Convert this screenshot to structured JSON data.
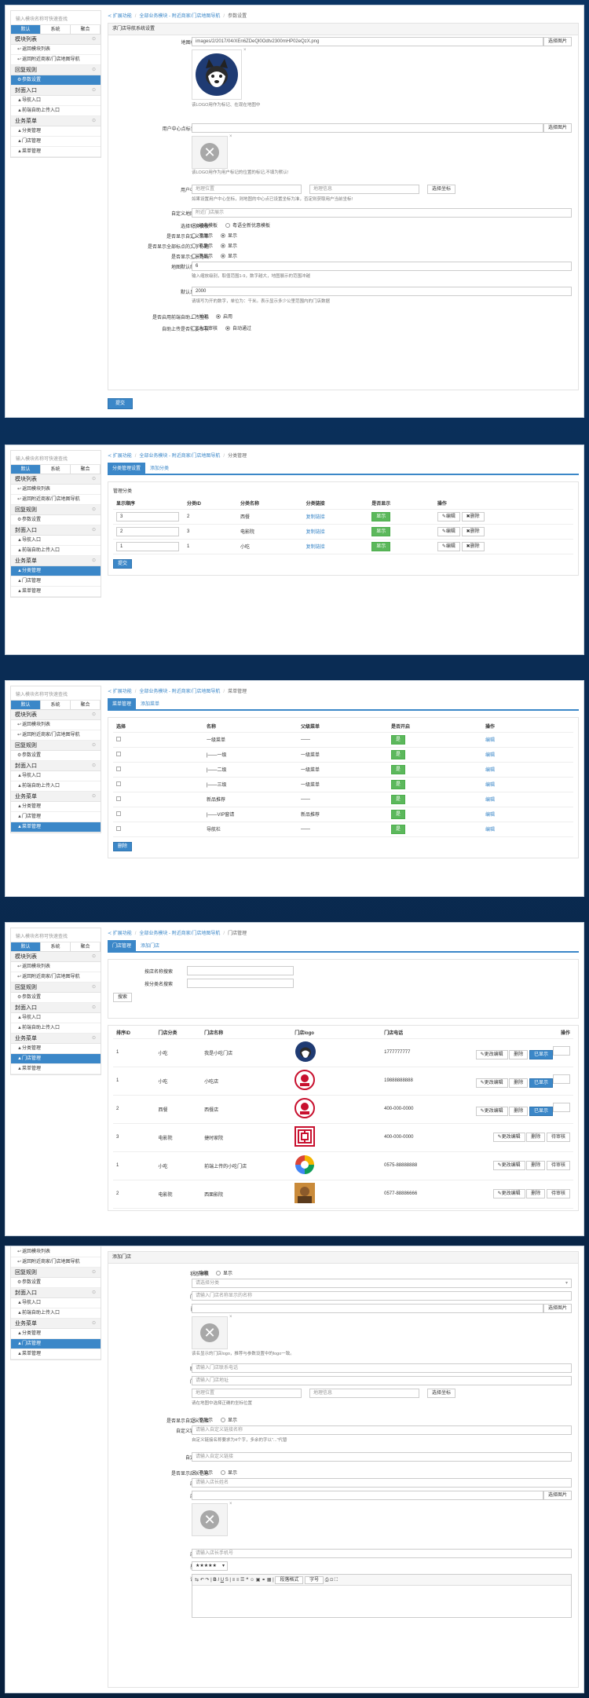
{
  "sidebar": {
    "search_placeholder": "输入模块名称可快速查找",
    "tabs": [
      "默认",
      "系统",
      "聚合"
    ],
    "sec_modules": "模块列表",
    "item_back_list": "返回模块列表",
    "item_back_nav": "返回附近商家/门店地图导航",
    "sec_reply": "回复规则",
    "item_params": "参数设置",
    "sec_entry": "封面入口",
    "item_nav_entry": "导航入口",
    "item_upload_entry": "前端自助上传入口",
    "sec_business": "业务菜单",
    "item_categories": "分类管理",
    "item_stores": "门店管理",
    "item_menus": "菜单管理"
  },
  "breadcrumb": {
    "ext": "扩展功能",
    "all": "全部业务模块 - 附近商家/门店地图导航",
    "params": "参数设置",
    "cat": "分类管理",
    "menu": "菜单管理",
    "store": "门店管理"
  },
  "settings": {
    "box_title": "求门店导航系统设置",
    "logo_label": "地图标识logo",
    "logo_value": "images/2/2017/04/XEn6ZDeQl0Odtv2300mHP02eQzX.png",
    "choose_image": "选择图片",
    "logo_help": "该LOGO用作为标记、在现在地图中",
    "ucenter_logo_label": "用户中心点标记LOGO",
    "ucenter_logo_help": "该LOGO用作为用户标记的位置的标记,不填为默认!",
    "ucenter_coord_label": "用户中心坐标",
    "lng_ph": "地理位置",
    "lat_ph": "地理信息",
    "pick_coord": "选择坐标",
    "ucenter_coord_help": "如果设置用户中心坐标，则地图的中心点已设置坐标为准，否定则获取用户当前坐标!",
    "title_label": "自定义地图页标题",
    "title_value": "附近门店展示",
    "mode_label": "选择切换模板",
    "mode_on": "经典模板",
    "mode_off": "粤语全新优惠模板",
    "show_menu_label": "是否显示自定义菜单",
    "show_name_label": "是否显示全部标点的文字标题",
    "show_all_label": "是否显示全景路线",
    "hide": "不显示",
    "show": "显示",
    "zoom_label": "地图默认缩放级别",
    "zoom_value": "6",
    "zoom_help": "输入缩放级别，取值范围1-9，数字越大，地图展示的范围冲越",
    "distance_label": "默认显示距离",
    "distance_value": "2000",
    "distance_help": "请填写为开的数字，单位为：千米。表示显示多少公里范围内的门店数据",
    "upload_label": "是否启用前端自助上传坐标",
    "upload_off": "关闭",
    "upload_on": "启用",
    "review_label": "自助上传是否需要审核",
    "review_manual": "人工审核",
    "review_auto": "自动通过",
    "submit": "提交"
  },
  "categories": {
    "tab_list": "分类管理设置",
    "tab_add": "添加分类",
    "section": "管理分类",
    "headers": [
      "显示顺序",
      "分类ID",
      "分类名称",
      "分类链接",
      "是否显示",
      "操作"
    ],
    "rows": [
      [
        "3",
        "2",
        "西餐",
        "复制链接"
      ],
      [
        "2",
        "3",
        "电影院",
        "复制链接"
      ],
      [
        "1",
        "1",
        "小吃",
        "复制链接"
      ]
    ],
    "show": "显示",
    "edit": "编辑",
    "del": "删除",
    "submit": "提交"
  },
  "menus": {
    "tab_list": "菜单管理",
    "tab_add": "添加菜单",
    "headers": [
      "选择",
      "名称",
      "父级菜单",
      "是否开启",
      "操作"
    ],
    "rows": [
      [
        "一级菜单",
        "——"
      ],
      [
        "|——一级",
        "一级菜单"
      ],
      [
        "|——二级",
        "一级菜单"
      ],
      [
        "|——三级",
        "一级菜单"
      ],
      [
        "新品推荐",
        "——"
      ],
      [
        "|——VIP窗请",
        "新品推荐"
      ],
      [
        "导航栏",
        "——"
      ]
    ],
    "on": "是",
    "edit": "编辑",
    "del": "删除"
  },
  "stores": {
    "tab_list": "门店管理",
    "tab_add": "添加门店",
    "search_name": "按店名称搜索",
    "search_cat": "按分类名搜索",
    "search_btn": "搜索",
    "headers": [
      "排序ID",
      "门店分类",
      "门店名称",
      "门店logo",
      "门店电话",
      "操作"
    ],
    "rows": [
      [
        "1",
        "小吃",
        "我是小吃门店",
        "1777777777"
      ],
      [
        "1",
        "小吃",
        "小吃店",
        "19888888888"
      ],
      [
        "2",
        "西餐",
        "西餐店",
        "400-000-0000"
      ],
      [
        "3",
        "电影院",
        "捷时家院",
        "400-000-0000"
      ],
      [
        "1",
        "小吃",
        "前端上传的小吃门店",
        "0575-88888888"
      ],
      [
        "2",
        "电影院",
        "西面影院",
        "0577-88886666"
      ]
    ],
    "edit": "更改编辑",
    "del": "删除",
    "shown": "已显示",
    "pending": "待审核"
  },
  "addstore": {
    "title": "添加门店",
    "status_label": "状态审核",
    "hidden": "隐藏",
    "display": "显示",
    "cat_label": "分类",
    "cat_ph": "请选择分类",
    "name_label": "门店名称",
    "name_ph": "请输入门店名称显示的名称",
    "logo_label": "门店logo",
    "logo_help": "该名显示的门店logo，推荐与参数设置中的logo一致。",
    "phone_label": "联系电话",
    "phone_ph": "请输入门店联系电话",
    "addr_label": "门店地址",
    "addr_ph": "请输入门店地址",
    "coord_label": "坐标",
    "coord_help": "请在地图中选择正确的坐标位置",
    "custom_link_label": "是否显示自定义链接",
    "custom_name_label": "自定义链接名称",
    "custom_name_ph": "请输入自定义链接名称",
    "custom_name_help": "自定义链接名称要求为4个字，多余的字以\"...\"代替",
    "custom_url_label": "自定义链接",
    "url_ph": "请输入自定义链接",
    "rep_label": "是否显示店长信息",
    "rep_name_label": "店长姓名",
    "rep_name_ph": "请输入店长姓名",
    "rep_photo_label": "店长头像",
    "rep_phone_label": "店长手机",
    "rep_phone_ph": "请输入店长手机号",
    "rating_label": "星级评价",
    "rating_value": "★★★★★",
    "desc_label": "详细简介",
    "editor_font": "段落格式",
    "editor_size": "字号"
  },
  "colors": {
    "accent": "#3b87c8",
    "success": "#5cb85c"
  }
}
